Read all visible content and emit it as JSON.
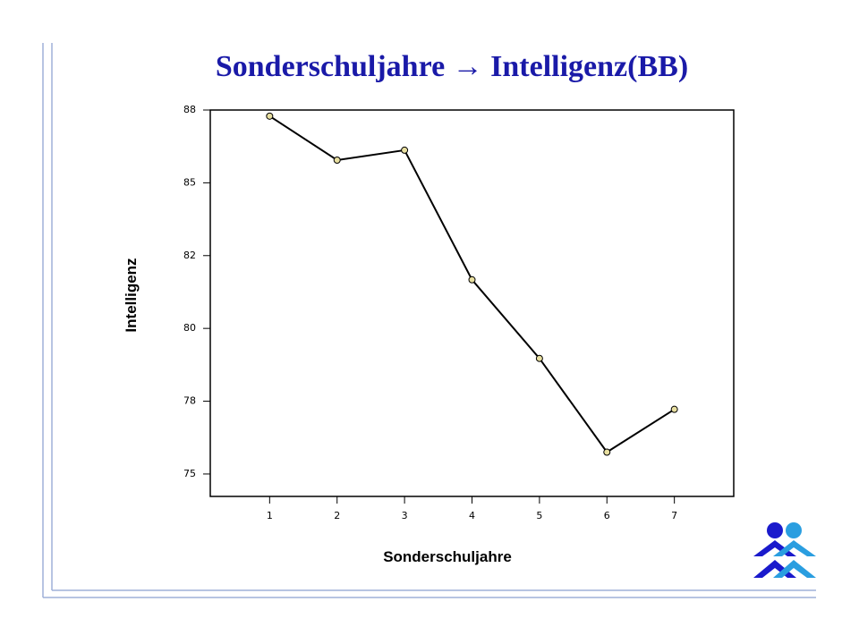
{
  "chart_data": {
    "type": "line",
    "title": "Sonderschuljahre → Intelligenz(BB)",
    "x_label": "Sonderschuljahre",
    "y_label": "Intelligenz",
    "x": [
      1,
      2,
      3,
      4,
      5,
      6,
      7
    ],
    "series": [
      {
        "name": "Intelligenz",
        "color": "#000000",
        "values": [
          87.29,
          85.78,
          86.12,
          81.67,
          78.97,
          75.75,
          77.22
        ]
      }
    ],
    "xlim": [
      0.12,
      7.88
    ],
    "xticks": [
      1,
      2,
      3,
      4,
      5,
      6,
      7
    ],
    "ylim": [
      74.23,
      87.5
    ],
    "yticks": [
      {
        "value": 75,
        "label": "75"
      },
      {
        "value": 77.5,
        "label": "78"
      },
      {
        "value": 80,
        "label": "80"
      },
      {
        "value": 82.5,
        "label": "82"
      },
      {
        "value": 85,
        "label": "85"
      },
      {
        "value": 87.5,
        "label": "88"
      }
    ],
    "grid": false
  }
}
